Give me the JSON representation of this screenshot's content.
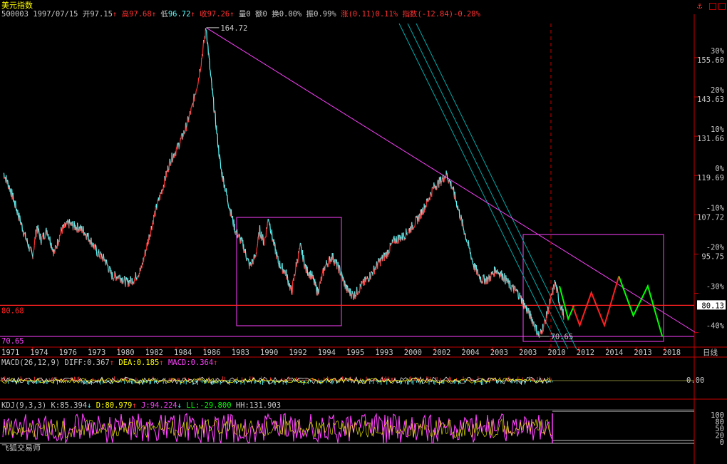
{
  "app_title": "美元指数",
  "corner_icon": "anchor-icon",
  "corner_buttons": [
    "maximize-icon",
    "window-icon"
  ],
  "colors": {
    "bg": "#000000",
    "up": "#ff3232",
    "down": "#54ffff",
    "axis": "#c80000",
    "trend": "#ff40ff",
    "teal": "#00aaaa",
    "green": "#00ff00",
    "red_proj": "#ff2020",
    "hline": "#ff2020",
    "fg": "#c8c8c8",
    "yellow": "#ffff00"
  },
  "header": {
    "code": "500003",
    "date": "1997/07/15",
    "open_label": "开",
    "open": "97.15",
    "high_label": "高",
    "high": "97.68",
    "low_label": "低",
    "low": "96.72",
    "close_label": "收",
    "close": "97.26",
    "vol_label": "量",
    "vol": "0",
    "amt_label": "额",
    "amt": "0",
    "turn_label": "换",
    "turn": "0.00%",
    "amp_label": "振",
    "amp": "0.99%",
    "chg_label": "涨",
    "chg": "(0.11)0.11%",
    "idx_label": "指数",
    "idx": "(-12.84)-0.28%"
  },
  "main_labels": {
    "peak": "164.72",
    "low": "70.65",
    "left_red": "80.68",
    "left_bottom": "70.65",
    "right_hline": "80.13",
    "period": "日线"
  },
  "macd": {
    "label": "MACD(26,12,9)",
    "diff_label": "DIFF:",
    "diff": "0.367",
    "dea_label": "DEA:",
    "dea": "0.185",
    "macd_label": "MACD:",
    "macd": "0.364",
    "zero": "0.00"
  },
  "kdj": {
    "label": "KDJ(9,3,3)",
    "k_label": "K:",
    "k": "85.394",
    "d_label": "D:",
    "d": "80.979",
    "j_label": "J:",
    "j": "94.224",
    "ll_label": "LL:",
    "ll": "-29.800",
    "hh_label": "HH:",
    "hh": "131.903",
    "ticks": [
      "100",
      "80",
      "50",
      "20",
      "0"
    ]
  },
  "watermark": "飞狐交易师",
  "chart_data": {
    "type": "line",
    "title": "美元指数",
    "y_ticks": [
      {
        "value": 155.6,
        "pct": "30%"
      },
      {
        "value": 143.63,
        "pct": "20%"
      },
      {
        "value": 131.66,
        "pct": "10%"
      },
      {
        "value": 119.69,
        "pct": "0%"
      },
      {
        "value": 107.72,
        "pct": "-10%"
      },
      {
        "value": 95.75,
        "pct": "-20%"
      },
      {
        "value": null,
        "pct": "-30%"
      },
      {
        "value": null,
        "pct": "-40%"
      }
    ],
    "ylim": [
      70.0,
      166.0
    ],
    "x_tick_labels": [
      "1971",
      "1974",
      "1976",
      "1973",
      "1980",
      "1982",
      "1984",
      "1986",
      "1983",
      "1990",
      "1992",
      "1994",
      "1995",
      "1993",
      "2000",
      "2002",
      "2004",
      "2003",
      "2003",
      "2010",
      "2012",
      "2014",
      "2013",
      "2018"
    ],
    "series": [
      {
        "name": "",
        "points": [
          [
            1971.0,
            120.5
          ],
          [
            1971.5,
            115
          ],
          [
            1972.0,
            108
          ],
          [
            1972.5,
            101
          ],
          [
            1973.0,
            95
          ],
          [
            1973.3,
            104
          ],
          [
            1973.6,
            100
          ],
          [
            1974.0,
            103
          ],
          [
            1974.5,
            96
          ],
          [
            1975.0,
            103
          ],
          [
            1975.5,
            105
          ],
          [
            1976.0,
            104
          ],
          [
            1976.5,
            103
          ],
          [
            1977.0,
            100
          ],
          [
            1977.5,
            96
          ],
          [
            1978.0,
            94
          ],
          [
            1978.5,
            89
          ],
          [
            1979.0,
            89
          ],
          [
            1979.5,
            87
          ],
          [
            1980.0,
            88
          ],
          [
            1980.5,
            91
          ],
          [
            1981.0,
            100
          ],
          [
            1981.5,
            109
          ],
          [
            1982.0,
            116
          ],
          [
            1982.5,
            124
          ],
          [
            1983.0,
            128
          ],
          [
            1983.5,
            133
          ],
          [
            1984.0,
            140
          ],
          [
            1984.5,
            150
          ],
          [
            1985.0,
            164.72
          ],
          [
            1985.3,
            150
          ],
          [
            1985.6,
            138
          ],
          [
            1986.0,
            122
          ],
          [
            1986.5,
            112
          ],
          [
            1987.0,
            103
          ],
          [
            1987.5,
            99
          ],
          [
            1988.0,
            92
          ],
          [
            1988.4,
            95
          ],
          [
            1988.7,
            103
          ],
          [
            1989.0,
            99
          ],
          [
            1989.3,
            107
          ],
          [
            1989.6,
            100
          ],
          [
            1990.0,
            93
          ],
          [
            1990.5,
            90
          ],
          [
            1990.9,
            84
          ],
          [
            1991.2,
            92
          ],
          [
            1991.5,
            98
          ],
          [
            1991.9,
            91
          ],
          [
            1992.3,
            89
          ],
          [
            1992.7,
            84
          ],
          [
            1993.2,
            92
          ],
          [
            1993.7,
            95
          ],
          [
            1994.2,
            91
          ],
          [
            1994.7,
            85
          ],
          [
            1995.2,
            83
          ],
          [
            1995.7,
            86
          ],
          [
            1996.3,
            89
          ],
          [
            1996.9,
            93
          ],
          [
            1997.5,
            96
          ],
          [
            1998.0,
            100
          ],
          [
            1998.6,
            101
          ],
          [
            1999.2,
            104
          ],
          [
            1999.7,
            107
          ],
          [
            2000.2,
            111
          ],
          [
            2000.7,
            116
          ],
          [
            2001.2,
            118
          ],
          [
            2001.6,
            120
          ],
          [
            2002.0,
            116
          ],
          [
            2002.5,
            108
          ],
          [
            2003.0,
            100
          ],
          [
            2003.5,
            92
          ],
          [
            2004.0,
            88
          ],
          [
            2004.5,
            88
          ],
          [
            2005.0,
            91
          ],
          [
            2005.5,
            89
          ],
          [
            2006.0,
            86
          ],
          [
            2006.5,
            84
          ],
          [
            2007.0,
            80
          ],
          [
            2007.5,
            76
          ],
          [
            2008.0,
            70.65
          ],
          [
            2008.4,
            75
          ],
          [
            2008.8,
            82
          ],
          [
            2009.1,
            87
          ],
          [
            2009.4,
            81
          ],
          [
            2009.7,
            77
          ]
        ]
      },
      {
        "name": "",
        "points": [
          [
            2009.4,
            86
          ],
          [
            2010.0,
            76
          ],
          [
            2010.4,
            80
          ]
        ]
      },
      {
        "name": "",
        "points": [
          [
            2010.3,
            80
          ],
          [
            2010.8,
            74
          ],
          [
            2011.6,
            84
          ],
          [
            2012.5,
            74
          ],
          [
            2013.5,
            89
          ]
        ]
      },
      {
        "name": "",
        "points": [
          [
            2013.5,
            89
          ],
          [
            2014.5,
            77
          ],
          [
            2015.5,
            86
          ],
          [
            2016.5,
            70.65
          ]
        ]
      }
    ],
    "horizontal_line": 80.13,
    "grid": false
  }
}
